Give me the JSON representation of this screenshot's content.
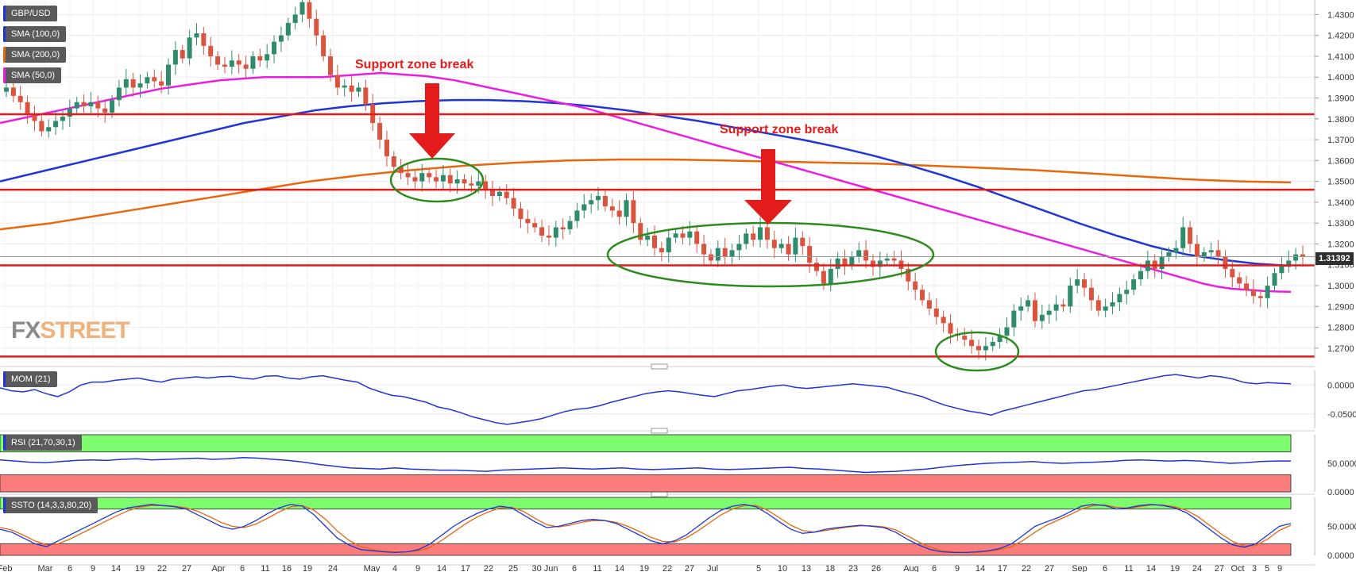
{
  "legend": {
    "symbol": "GBP/USD",
    "sma100": "SMA (100,0)",
    "sma200": "SMA (200,0)",
    "sma50": "SMA (50,0)"
  },
  "colors": {
    "up": "#2e8b6b",
    "down": "#d9533f",
    "sma50": "#e91ee0",
    "sma100": "#1f35d8",
    "sma200": "#e8660c",
    "support": "#e31b1b",
    "ellipse": "#2e8b1e",
    "indicator": "#1f35d8",
    "indicator2": "#e8660c",
    "overbought": "#7dfc6e",
    "oversold": "#fc7c7c"
  },
  "annotations": {
    "break1": "Support zone break",
    "break2": "Support zone break"
  },
  "logo": {
    "part1": "FX",
    "part2": "STREET"
  },
  "current_price": "1.31392",
  "panels": {
    "mom": "MOM (21)",
    "rsi": "RSI (21,70,30,1)",
    "ssto": "SSTO (14,3,3,80,20)"
  },
  "chart_data": {
    "type": "candlestick",
    "symbol": "GBP/USD",
    "y_range": [
      1.265,
      1.437
    ],
    "y_ticks": [
      "1.4300",
      "1.4200",
      "1.4100",
      "1.4000",
      "1.3900",
      "1.3800",
      "1.3700",
      "1.3600",
      "1.3500",
      "1.3400",
      "1.3300",
      "1.3200",
      "1.3100",
      "1.3000",
      "1.2900",
      "1.2800",
      "1.2700"
    ],
    "x_labels": [
      "Feb",
      "Mar",
      "6",
      "9",
      "14",
      "19",
      "22",
      "27",
      "Apr",
      "6",
      "11",
      "16",
      "19",
      "24",
      "May",
      "4",
      "9",
      "14",
      "17",
      "22",
      "25",
      "30 Jun",
      "6",
      "11",
      "14",
      "19",
      "22",
      "27",
      "Jul",
      "5",
      "10",
      "13",
      "18",
      "23",
      "26",
      "Aug",
      "6",
      "9",
      "14",
      "17",
      "22",
      "27",
      "Sep",
      "6",
      "11",
      "14",
      "19",
      "24",
      "27",
      "Oct",
      "3",
      "5",
      "9"
    ],
    "support_levels": [
      1.3822,
      1.346,
      1.3097,
      1.266
    ],
    "current_price": 1.31392,
    "close": [
      1.395,
      1.391,
      1.388,
      1.382,
      1.379,
      1.374,
      1.376,
      1.379,
      1.381,
      1.385,
      1.388,
      1.386,
      1.388,
      1.385,
      1.383,
      1.389,
      1.395,
      1.399,
      1.395,
      1.397,
      1.4,
      1.398,
      1.396,
      1.406,
      1.413,
      1.409,
      1.419,
      1.421,
      1.415,
      1.41,
      1.406,
      1.405,
      1.408,
      1.406,
      1.404,
      1.41,
      1.408,
      1.411,
      1.417,
      1.42,
      1.426,
      1.43,
      1.436,
      1.428,
      1.42,
      1.41,
      1.401,
      1.395,
      1.396,
      1.393,
      1.395,
      1.387,
      1.378,
      1.37,
      1.362,
      1.357,
      1.354,
      1.352,
      1.35,
      1.354,
      1.352,
      1.35,
      1.353,
      1.349,
      1.351,
      1.349,
      1.348,
      1.35,
      1.346,
      1.343,
      1.345,
      1.342,
      1.337,
      1.332,
      1.33,
      1.328,
      1.324,
      1.323,
      1.328,
      1.327,
      1.331,
      1.336,
      1.339,
      1.341,
      1.343,
      1.338,
      1.336,
      1.333,
      1.341,
      1.33,
      1.322,
      1.324,
      1.318,
      1.316,
      1.323,
      1.325,
      1.323,
      1.326,
      1.32,
      1.315,
      1.312,
      1.318,
      1.314,
      1.317,
      1.32,
      1.325,
      1.322,
      1.328,
      1.322,
      1.318,
      1.32,
      1.315,
      1.323,
      1.319,
      1.311,
      1.307,
      1.301,
      1.308,
      1.313,
      1.31,
      1.314,
      1.317,
      1.312,
      1.309,
      1.312,
      1.313,
      1.312,
      1.308,
      1.302,
      1.298,
      1.293,
      1.289,
      1.285,
      1.282,
      1.277,
      1.276,
      1.274,
      1.271,
      1.269,
      1.271,
      1.273,
      1.276,
      1.28,
      1.288,
      1.29,
      1.293,
      1.283,
      1.286,
      1.288,
      1.291,
      1.29,
      1.3,
      1.303,
      1.299,
      1.293,
      1.288,
      1.29,
      1.292,
      1.296,
      1.298,
      1.303,
      1.307,
      1.312,
      1.308,
      1.314,
      1.316,
      1.318,
      1.328,
      1.32,
      1.314,
      1.316,
      1.317,
      1.314,
      1.308,
      1.304,
      1.301,
      1.298,
      1.295,
      1.294,
      1.3,
      1.306,
      1.31,
      1.312,
      1.315,
      1.3139
    ],
    "sma50": [
      1.378,
      1.3795,
      1.381,
      1.3825,
      1.384,
      1.3855,
      1.387,
      1.3885,
      1.39,
      1.3915,
      1.393,
      1.3945,
      1.3955,
      1.3965,
      1.3975,
      1.3985,
      1.399,
      1.3995,
      1.4,
      1.4,
      1.4,
      1.4,
      1.4,
      1.4005,
      1.401,
      1.4015,
      1.402,
      1.4015,
      1.401,
      1.4005,
      1.3995,
      1.3985,
      1.397,
      1.3955,
      1.394,
      1.3925,
      1.391,
      1.3895,
      1.388,
      1.3865,
      1.385,
      1.383,
      1.381,
      1.379,
      1.377,
      1.375,
      1.373,
      1.371,
      1.369,
      1.367,
      1.365,
      1.363,
      1.361,
      1.359,
      1.357,
      1.355,
      1.353,
      1.351,
      1.349,
      1.347,
      1.345,
      1.343,
      1.341,
      1.339,
      1.337,
      1.335,
      1.333,
      1.331,
      1.329,
      1.327,
      1.325,
      1.323,
      1.321,
      1.319,
      1.317,
      1.315,
      1.313,
      1.311,
      1.309,
      1.307,
      1.305,
      1.303,
      1.301,
      1.2995,
      1.2985,
      1.298,
      1.2975,
      1.2972,
      1.297
    ],
    "sma100": [
      1.35,
      1.354,
      1.358,
      1.362,
      1.366,
      1.37,
      1.374,
      1.378,
      1.381,
      1.384,
      1.386,
      1.3875,
      1.3885,
      1.389,
      1.389,
      1.3885,
      1.3875,
      1.386,
      1.384,
      1.3815,
      1.379,
      1.376,
      1.373,
      1.37,
      1.3665,
      1.3625,
      1.358,
      1.353,
      1.3475,
      1.3415,
      1.3355,
      1.3295,
      1.324,
      1.319,
      1.315,
      1.3125,
      1.3105,
      1.3095
    ],
    "sma200": [
      1.327,
      1.33,
      1.334,
      1.338,
      1.342,
      1.346,
      1.35,
      1.353,
      1.3555,
      1.3575,
      1.359,
      1.36,
      1.3605,
      1.3605,
      1.36,
      1.3595,
      1.359,
      1.3585,
      1.3575,
      1.3565,
      1.3555,
      1.354,
      1.3525,
      1.351,
      1.35,
      1.3495
    ],
    "mom": {
      "label": "MOM (21)",
      "y_ticks": [
        "0.0000",
        "-0.0500"
      ],
      "y_range": [
        -0.075,
        0.025
      ],
      "values": [
        -0.005,
        -0.01,
        -0.012,
        -0.008,
        -0.015,
        -0.02,
        -0.012,
        0.0,
        0.005,
        0.005,
        0.008,
        0.01,
        0.012,
        0.008,
        0.005,
        0.01,
        0.012,
        0.014,
        0.012,
        0.014,
        0.015,
        0.012,
        0.01,
        0.015,
        0.016,
        0.012,
        0.01,
        0.014,
        0.016,
        0.012,
        0.008,
        0.005,
        -0.005,
        -0.012,
        -0.018,
        -0.02,
        -0.025,
        -0.03,
        -0.038,
        -0.042,
        -0.048,
        -0.055,
        -0.06,
        -0.065,
        -0.068,
        -0.065,
        -0.062,
        -0.058,
        -0.052,
        -0.046,
        -0.042,
        -0.04,
        -0.036,
        -0.03,
        -0.025,
        -0.02,
        -0.015,
        -0.012,
        -0.01,
        -0.012,
        -0.015,
        -0.018,
        -0.02,
        -0.015,
        -0.01,
        -0.008,
        -0.005,
        -0.002,
        0.0,
        -0.004,
        -0.006,
        -0.004,
        -0.002,
        0.0,
        0.002,
        0.0,
        -0.002,
        -0.004,
        -0.01,
        -0.015,
        -0.02,
        -0.028,
        -0.035,
        -0.04,
        -0.045,
        -0.048,
        -0.052,
        -0.045,
        -0.04,
        -0.035,
        -0.03,
        -0.025,
        -0.02,
        -0.015,
        -0.01,
        -0.008,
        -0.004,
        0.0,
        0.004,
        0.008,
        0.012,
        0.016,
        0.018,
        0.015,
        0.012,
        0.016,
        0.014,
        0.01,
        0.004,
        0.002,
        0.004,
        0.003,
        0.002
      ]
    },
    "rsi": {
      "label": "RSI (21,70,30,1)",
      "y_ticks": [
        "50.0000",
        "0.0000"
      ],
      "y_range": [
        0,
        100
      ],
      "levels": [
        70,
        30
      ],
      "values": [
        56,
        54,
        52,
        51,
        53,
        55,
        56,
        55,
        57,
        58,
        56,
        57,
        58,
        59,
        57,
        58,
        60,
        59,
        57,
        55,
        52,
        48,
        45,
        42,
        41,
        40,
        42,
        40,
        39,
        38,
        38,
        37,
        36,
        38,
        39,
        40,
        41,
        42,
        41,
        40,
        41,
        42,
        40,
        39,
        40,
        41,
        42,
        40,
        39,
        40,
        41,
        42,
        43,
        41,
        40,
        38,
        36,
        34,
        35,
        36,
        38,
        40,
        43,
        46,
        48,
        50,
        51,
        52,
        53,
        51,
        50,
        51,
        52,
        53,
        55,
        56,
        55,
        54,
        55,
        54,
        52,
        50,
        51,
        53,
        54,
        54
      ]
    },
    "ssto": {
      "label": "SSTO (14,3,3,80,20)",
      "y_ticks": [
        "50.0000",
        "0.0000"
      ],
      "y_range": [
        0,
        100
      ],
      "levels": [
        80,
        20
      ],
      "k": [
        45,
        40,
        30,
        20,
        15,
        25,
        35,
        45,
        55,
        65,
        75,
        82,
        85,
        88,
        86,
        84,
        80,
        70,
        60,
        50,
        45,
        50,
        60,
        72,
        82,
        88,
        85,
        70,
        50,
        30,
        18,
        10,
        8,
        6,
        5,
        6,
        10,
        20,
        35,
        50,
        62,
        72,
        80,
        85,
        82,
        70,
        58,
        48,
        50,
        55,
        60,
        62,
        60,
        55,
        45,
        35,
        25,
        20,
        25,
        35,
        50,
        65,
        78,
        85,
        88,
        84,
        72,
        58,
        45,
        38,
        40,
        45,
        48,
        50,
        52,
        50,
        48,
        40,
        28,
        18,
        10,
        6,
        5,
        5,
        6,
        8,
        12,
        20,
        35,
        50,
        58,
        65,
        75,
        85,
        88,
        86,
        80,
        82,
        86,
        88,
        86,
        82,
        74,
        60,
        45,
        30,
        18,
        14,
        20,
        35,
        50,
        55
      ],
      "d": [
        48,
        44,
        35,
        25,
        18,
        20,
        28,
        38,
        48,
        58,
        68,
        77,
        83,
        86,
        86,
        85,
        82,
        76,
        67,
        57,
        50,
        48,
        54,
        64,
        75,
        84,
        86,
        78,
        62,
        42,
        26,
        15,
        10,
        7,
        6,
        6,
        8,
        14,
        26,
        40,
        54,
        66,
        75,
        82,
        83,
        76,
        64,
        53,
        49,
        52,
        57,
        60,
        60,
        57,
        50,
        41,
        31,
        24,
        23,
        30,
        42,
        56,
        70,
        80,
        86,
        86,
        78,
        65,
        52,
        43,
        40,
        43,
        46,
        49,
        51,
        51,
        49,
        44,
        34,
        23,
        14,
        8,
        6,
        5,
        5,
        7,
        10,
        15,
        26,
        40,
        52,
        61,
        70,
        80,
        86,
        87,
        83,
        81,
        84,
        87,
        87,
        84,
        78,
        67,
        52,
        37,
        24,
        16,
        17,
        28,
        43,
        52
      ]
    }
  }
}
